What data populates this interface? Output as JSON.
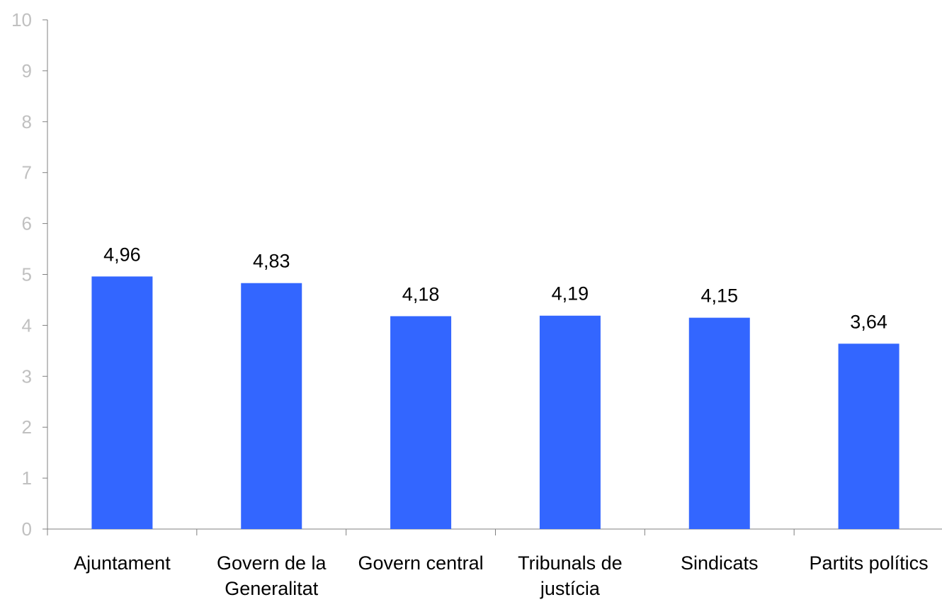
{
  "chart_data": {
    "type": "bar",
    "title": "",
    "xlabel": "",
    "ylabel": "",
    "categories": [
      [
        "Ajuntament"
      ],
      [
        "Govern de la",
        "Generalitat"
      ],
      [
        "Govern central"
      ],
      [
        "Tribunals de",
        "justícia"
      ],
      [
        "Sindicats"
      ],
      [
        "Partits polítics"
      ]
    ],
    "values": [
      4.96,
      4.83,
      4.18,
      4.19,
      4.15,
      3.64
    ],
    "value_labels": [
      "4,96",
      "4,83",
      "4,18",
      "4,19",
      "4,15",
      "3,64"
    ],
    "ylim": [
      0,
      10
    ],
    "yticks": [
      "0",
      "1",
      "2",
      "3",
      "4",
      "5",
      "6",
      "7",
      "8",
      "9",
      "10"
    ],
    "grid": false,
    "legend": "none",
    "bar_color": "#3366ff",
    "axis_color": "#808080",
    "ytick_color": "#c0c0c0"
  }
}
